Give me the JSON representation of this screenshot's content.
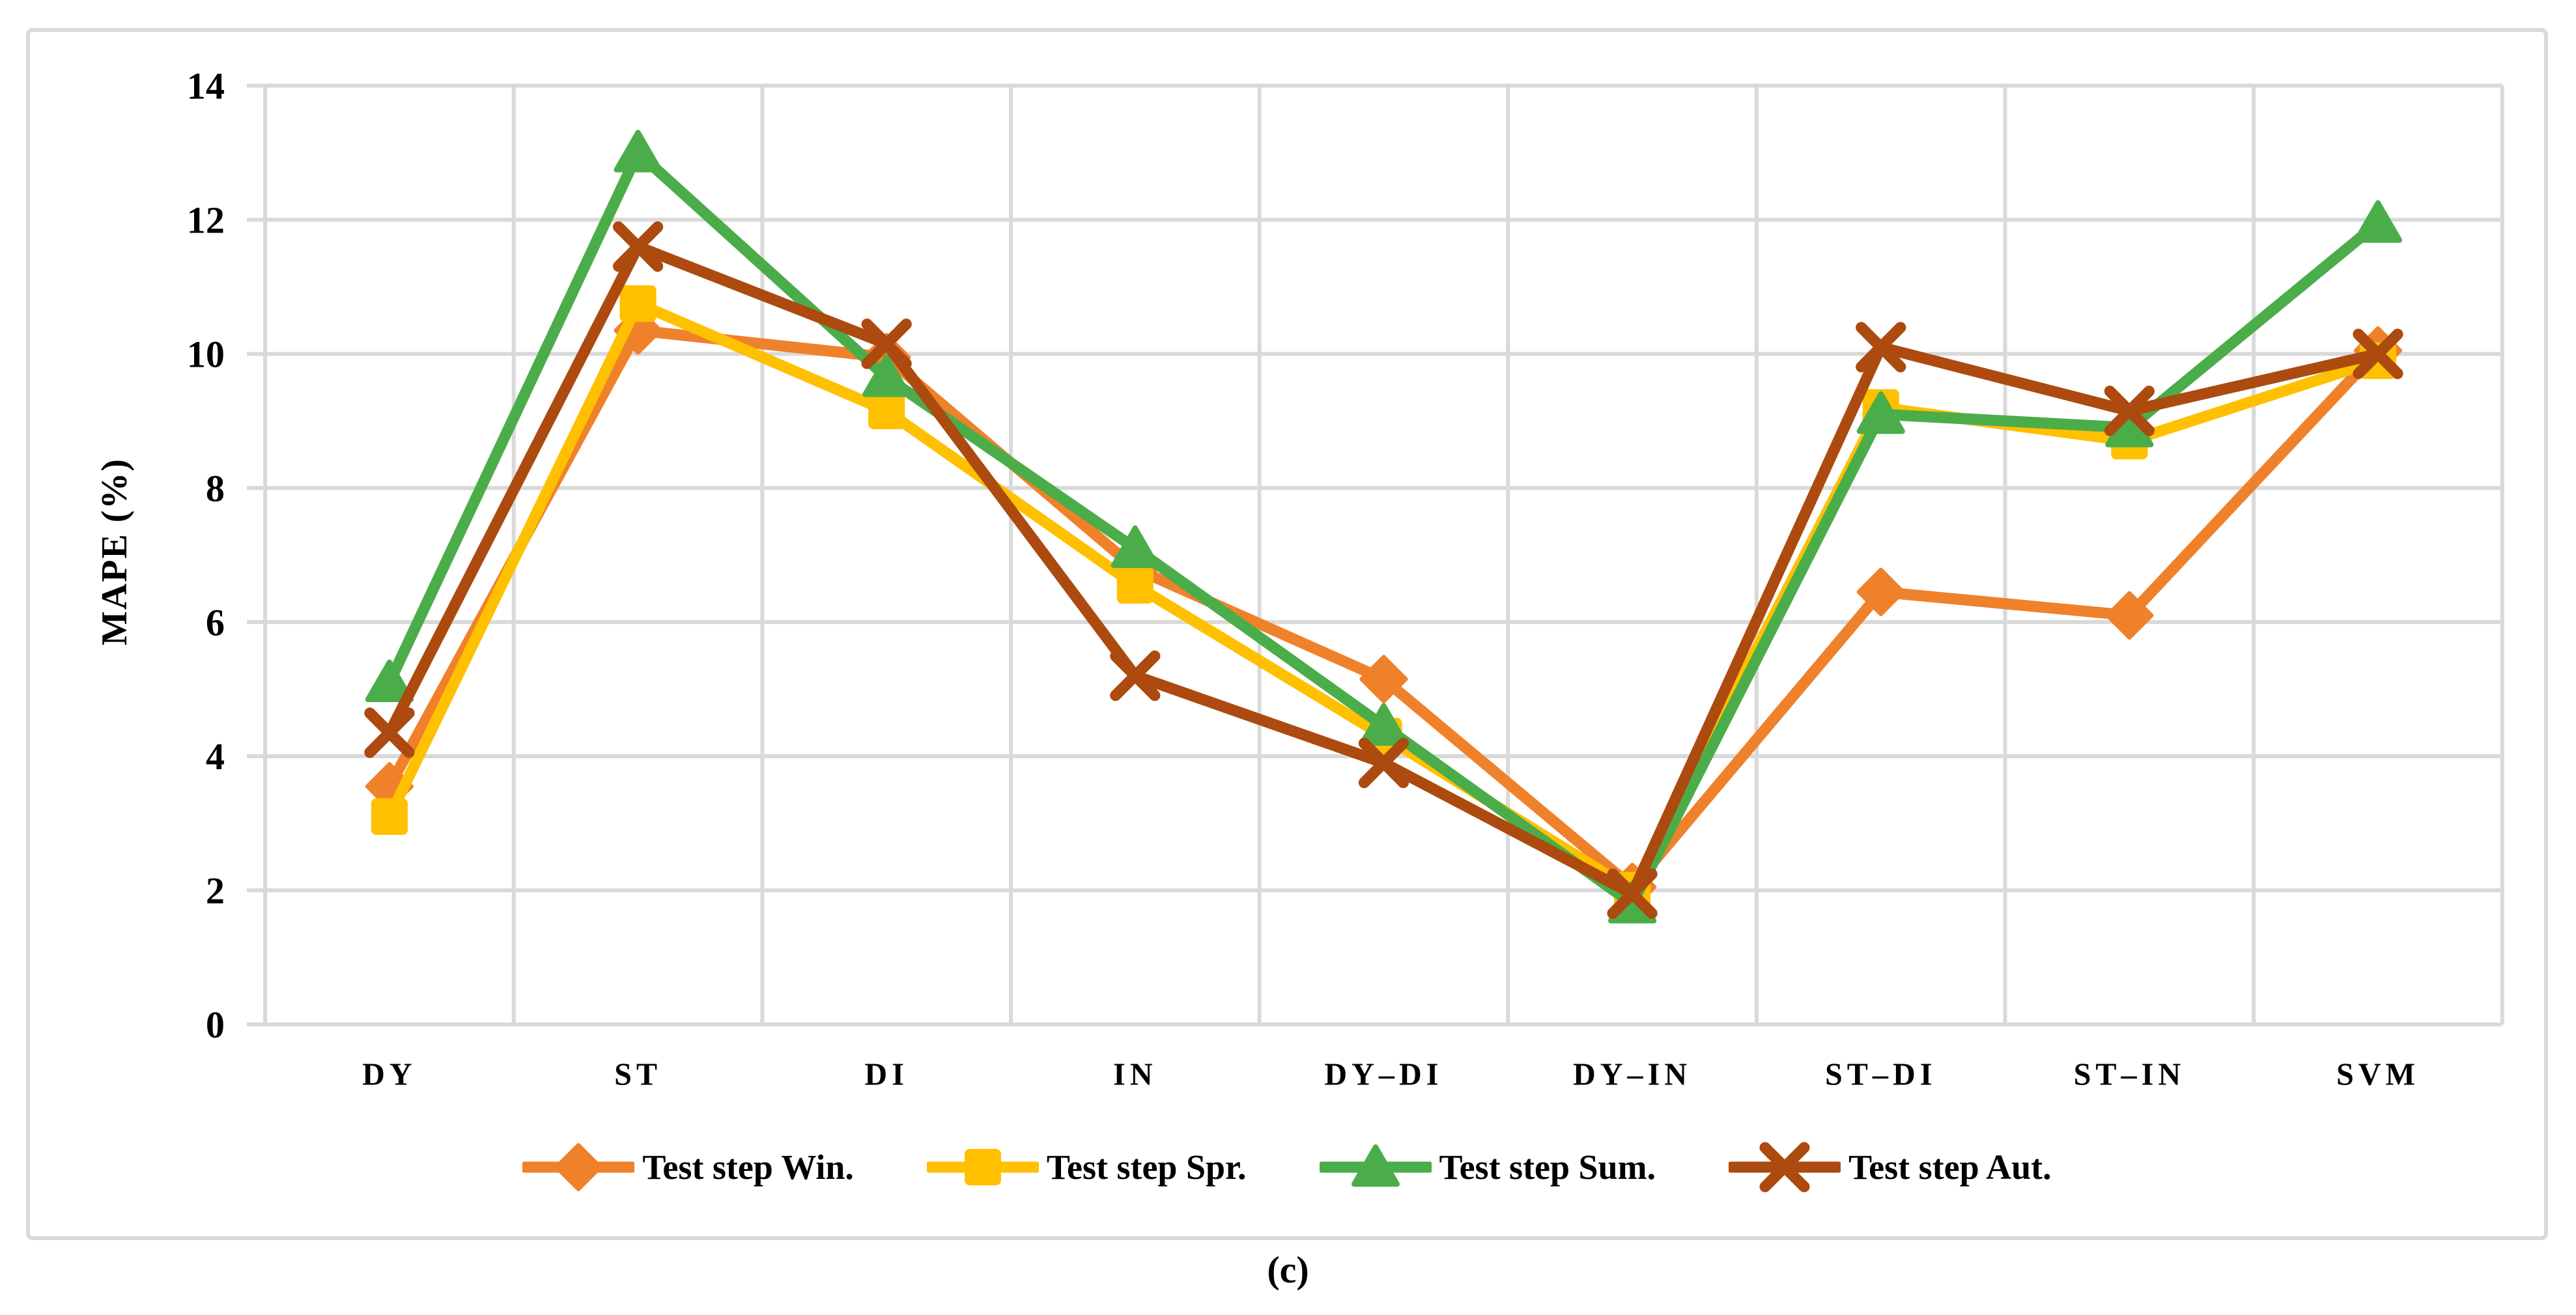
{
  "figure": {
    "caption": "(c)"
  },
  "chart_data": {
    "type": "line",
    "title": "",
    "xlabel": "",
    "ylabel": "MAPE (%)",
    "ylim": [
      0,
      14
    ],
    "yticks": [
      0,
      2,
      4,
      6,
      8,
      10,
      12,
      14
    ],
    "grid": true,
    "legend_position": "bottom",
    "categories": [
      "DY",
      "ST",
      "DI",
      "IN",
      "DY–DI",
      "DY–IN",
      "ST–DI",
      "ST–IN",
      "SVM"
    ],
    "series": [
      {
        "name": "Test step Win.",
        "marker": "diamond",
        "color": "#F0812B",
        "values": [
          3.55,
          10.35,
          9.95,
          6.8,
          5.15,
          2.05,
          6.45,
          6.1,
          10.05
        ]
      },
      {
        "name": "Test step Spr.",
        "marker": "square",
        "color": "#FFC000",
        "values": [
          3.1,
          10.75,
          9.15,
          6.55,
          4.3,
          2.0,
          9.2,
          8.7,
          9.9
        ]
      },
      {
        "name": "Test step Sum.",
        "marker": "triangle",
        "color": "#4BAD49",
        "values": [
          5.1,
          13.0,
          9.65,
          7.1,
          4.45,
          1.8,
          9.1,
          8.9,
          11.95
        ]
      },
      {
        "name": "Test step Aut.",
        "marker": "x",
        "color": "#AC4A0F",
        "values": [
          4.35,
          11.6,
          10.15,
          5.2,
          3.9,
          1.95,
          10.1,
          9.15,
          10.0
        ]
      }
    ],
    "colors": {
      "gridline": "#D9D9D9",
      "text": "#000000",
      "background": "#FFFFFF"
    }
  }
}
